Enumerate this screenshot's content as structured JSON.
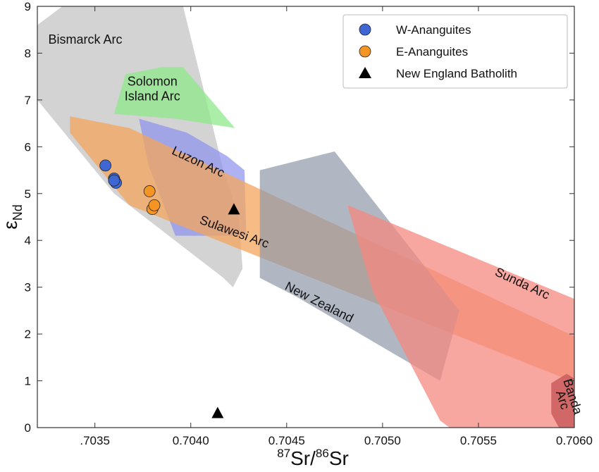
{
  "chart_data": {
    "type": "scatter",
    "title": "",
    "xlabel": {
      "sup1": "87",
      "base1": "Sr/",
      "sup2": "86",
      "base2": "Sr"
    },
    "ylabel": {
      "base": "ε",
      "sub": "Nd"
    },
    "xlim": [
      0.7032,
      0.706
    ],
    "ylim": [
      0,
      9
    ],
    "x_ticks": [
      0.7035,
      0.704,
      0.7045,
      0.705,
      0.7055,
      0.706
    ],
    "x_tick_labels": [
      ".7035",
      "0.7040",
      "0.7045",
      "0.7050",
      "0.7055",
      "0.7060"
    ],
    "y_ticks": [
      0,
      1,
      2,
      3,
      4,
      5,
      6,
      7,
      8,
      9
    ],
    "y_tick_labels": [
      "0",
      "1",
      "2",
      "3",
      "4",
      "5",
      "6",
      "7",
      "8",
      "9"
    ],
    "grid": false,
    "legend_position": "top-right",
    "legend": [
      {
        "label": "W-Ananguites",
        "marker": "circle",
        "color": "#3f67d4"
      },
      {
        "label": "E-Ananguites",
        "marker": "circle",
        "color": "#f39423"
      },
      {
        "label": "New England Batholith",
        "marker": "triangle",
        "color": "#000000"
      }
    ],
    "regions": [
      {
        "name": "Bismarck Arc",
        "label_lines": [
          "Bismarck Arc"
        ],
        "label_x": 0.70345,
        "label_y": 8.2,
        "label_rotation": 0,
        "fill": "#c4c4c4",
        "opacity": 0.75,
        "polygon": [
          [
            0.7032,
            8.6
          ],
          [
            0.70333,
            9.0
          ],
          [
            0.70396,
            9.0
          ],
          [
            0.70402,
            8.0
          ],
          [
            0.70417,
            5.5
          ],
          [
            0.70425,
            4.5
          ],
          [
            0.70427,
            3.4
          ],
          [
            0.70422,
            3.0
          ],
          [
            0.70417,
            3.2
          ],
          [
            0.7036,
            5.0
          ],
          [
            0.7032,
            7.0
          ]
        ]
      },
      {
        "name": "Solomon Island Arc",
        "label_lines": [
          "Solomon",
          "Island Arc"
        ],
        "label_x": 0.7038,
        "label_y": 7.15,
        "label_rotation": 0,
        "fill": "#8ee88a",
        "opacity": 0.75,
        "polygon": [
          [
            0.7036,
            6.7
          ],
          [
            0.70366,
            7.55
          ],
          [
            0.70385,
            7.7
          ],
          [
            0.70396,
            7.7
          ],
          [
            0.70423,
            6.4
          ],
          [
            0.70392,
            6.6
          ]
        ]
      },
      {
        "name": "Luzon Arc",
        "label_lines": [
          "Luzon Arc"
        ],
        "label_x": 0.70403,
        "label_y": 5.6,
        "label_rotation": 25,
        "fill": "#8c92ee",
        "opacity": 0.7,
        "polygon": [
          [
            0.70373,
            6.6
          ],
          [
            0.70398,
            6.3
          ],
          [
            0.70419,
            5.8
          ],
          [
            0.70428,
            5.5
          ],
          [
            0.70429,
            4.1
          ],
          [
            0.70392,
            4.1
          ],
          [
            0.70378,
            5.6
          ]
        ]
      },
      {
        "name": "Sulawesi Arc",
        "label_lines": [
          "Sulawesi Arc"
        ],
        "label_x": 0.70422,
        "label_y": 4.1,
        "label_rotation": 20,
        "fill": "#f4a65c",
        "opacity": 0.75,
        "polygon": [
          [
            0.70337,
            6.65
          ],
          [
            0.70368,
            6.4
          ],
          [
            0.706,
            1.95
          ],
          [
            0.706,
            1.0
          ],
          [
            0.70592,
            1.1
          ],
          [
            0.70368,
            4.75
          ],
          [
            0.70337,
            6.3
          ]
        ]
      },
      {
        "name": "New Zealand",
        "label_lines": [
          "New Zealand"
        ],
        "label_x": 0.70466,
        "label_y": 2.6,
        "label_rotation": 27,
        "fill": "#8e99a9",
        "opacity": 0.7,
        "polygon": [
          [
            0.70436,
            5.5
          ],
          [
            0.70475,
            5.9
          ],
          [
            0.7054,
            2.5
          ],
          [
            0.7053,
            1.0
          ],
          [
            0.70455,
            2.8
          ],
          [
            0.70436,
            3.2
          ]
        ]
      },
      {
        "name": "Sunda Arc",
        "label_lines": [
          "Sunda Arc"
        ],
        "label_x": 0.70572,
        "label_y": 3.0,
        "label_rotation": 25,
        "fill": "#f48880",
        "opacity": 0.75,
        "polygon": [
          [
            0.70482,
            4.75
          ],
          [
            0.706,
            2.75
          ],
          [
            0.706,
            0.0
          ],
          [
            0.70535,
            0.0
          ],
          [
            0.7053,
            0.15
          ],
          [
            0.70495,
            2.9
          ],
          [
            0.70482,
            4.7
          ]
        ]
      },
      {
        "name": "Banda Arc",
        "label_lines": [
          "Banda",
          "Arc"
        ],
        "label_x": 0.705945,
        "label_y": 0.6,
        "label_rotation": 72,
        "fill": "#cc6060",
        "opacity": 0.9,
        "polygon": [
          [
            0.70588,
            0.95
          ],
          [
            0.70596,
            1.15
          ],
          [
            0.706,
            1.05
          ],
          [
            0.706,
            0.0
          ],
          [
            0.70592,
            0.0
          ],
          [
            0.70588,
            0.3
          ]
        ]
      }
    ],
    "series": [
      {
        "name": "W-Ananguites",
        "marker": "circle",
        "color": "#3f67d4",
        "points": [
          [
            0.703555,
            5.6
          ],
          [
            0.7036,
            5.32
          ],
          [
            0.70361,
            5.23
          ],
          [
            0.7036,
            5.28
          ]
        ]
      },
      {
        "name": "E-Ananguites",
        "marker": "circle",
        "color": "#f39423",
        "points": [
          [
            0.703785,
            5.05
          ],
          [
            0.7038,
            4.67
          ],
          [
            0.70381,
            4.75
          ]
        ]
      },
      {
        "name": "New England Batholith",
        "marker": "triangle",
        "color": "#000000",
        "points": [
          [
            0.704225,
            4.65
          ],
          [
            0.70414,
            0.3
          ]
        ]
      }
    ]
  }
}
